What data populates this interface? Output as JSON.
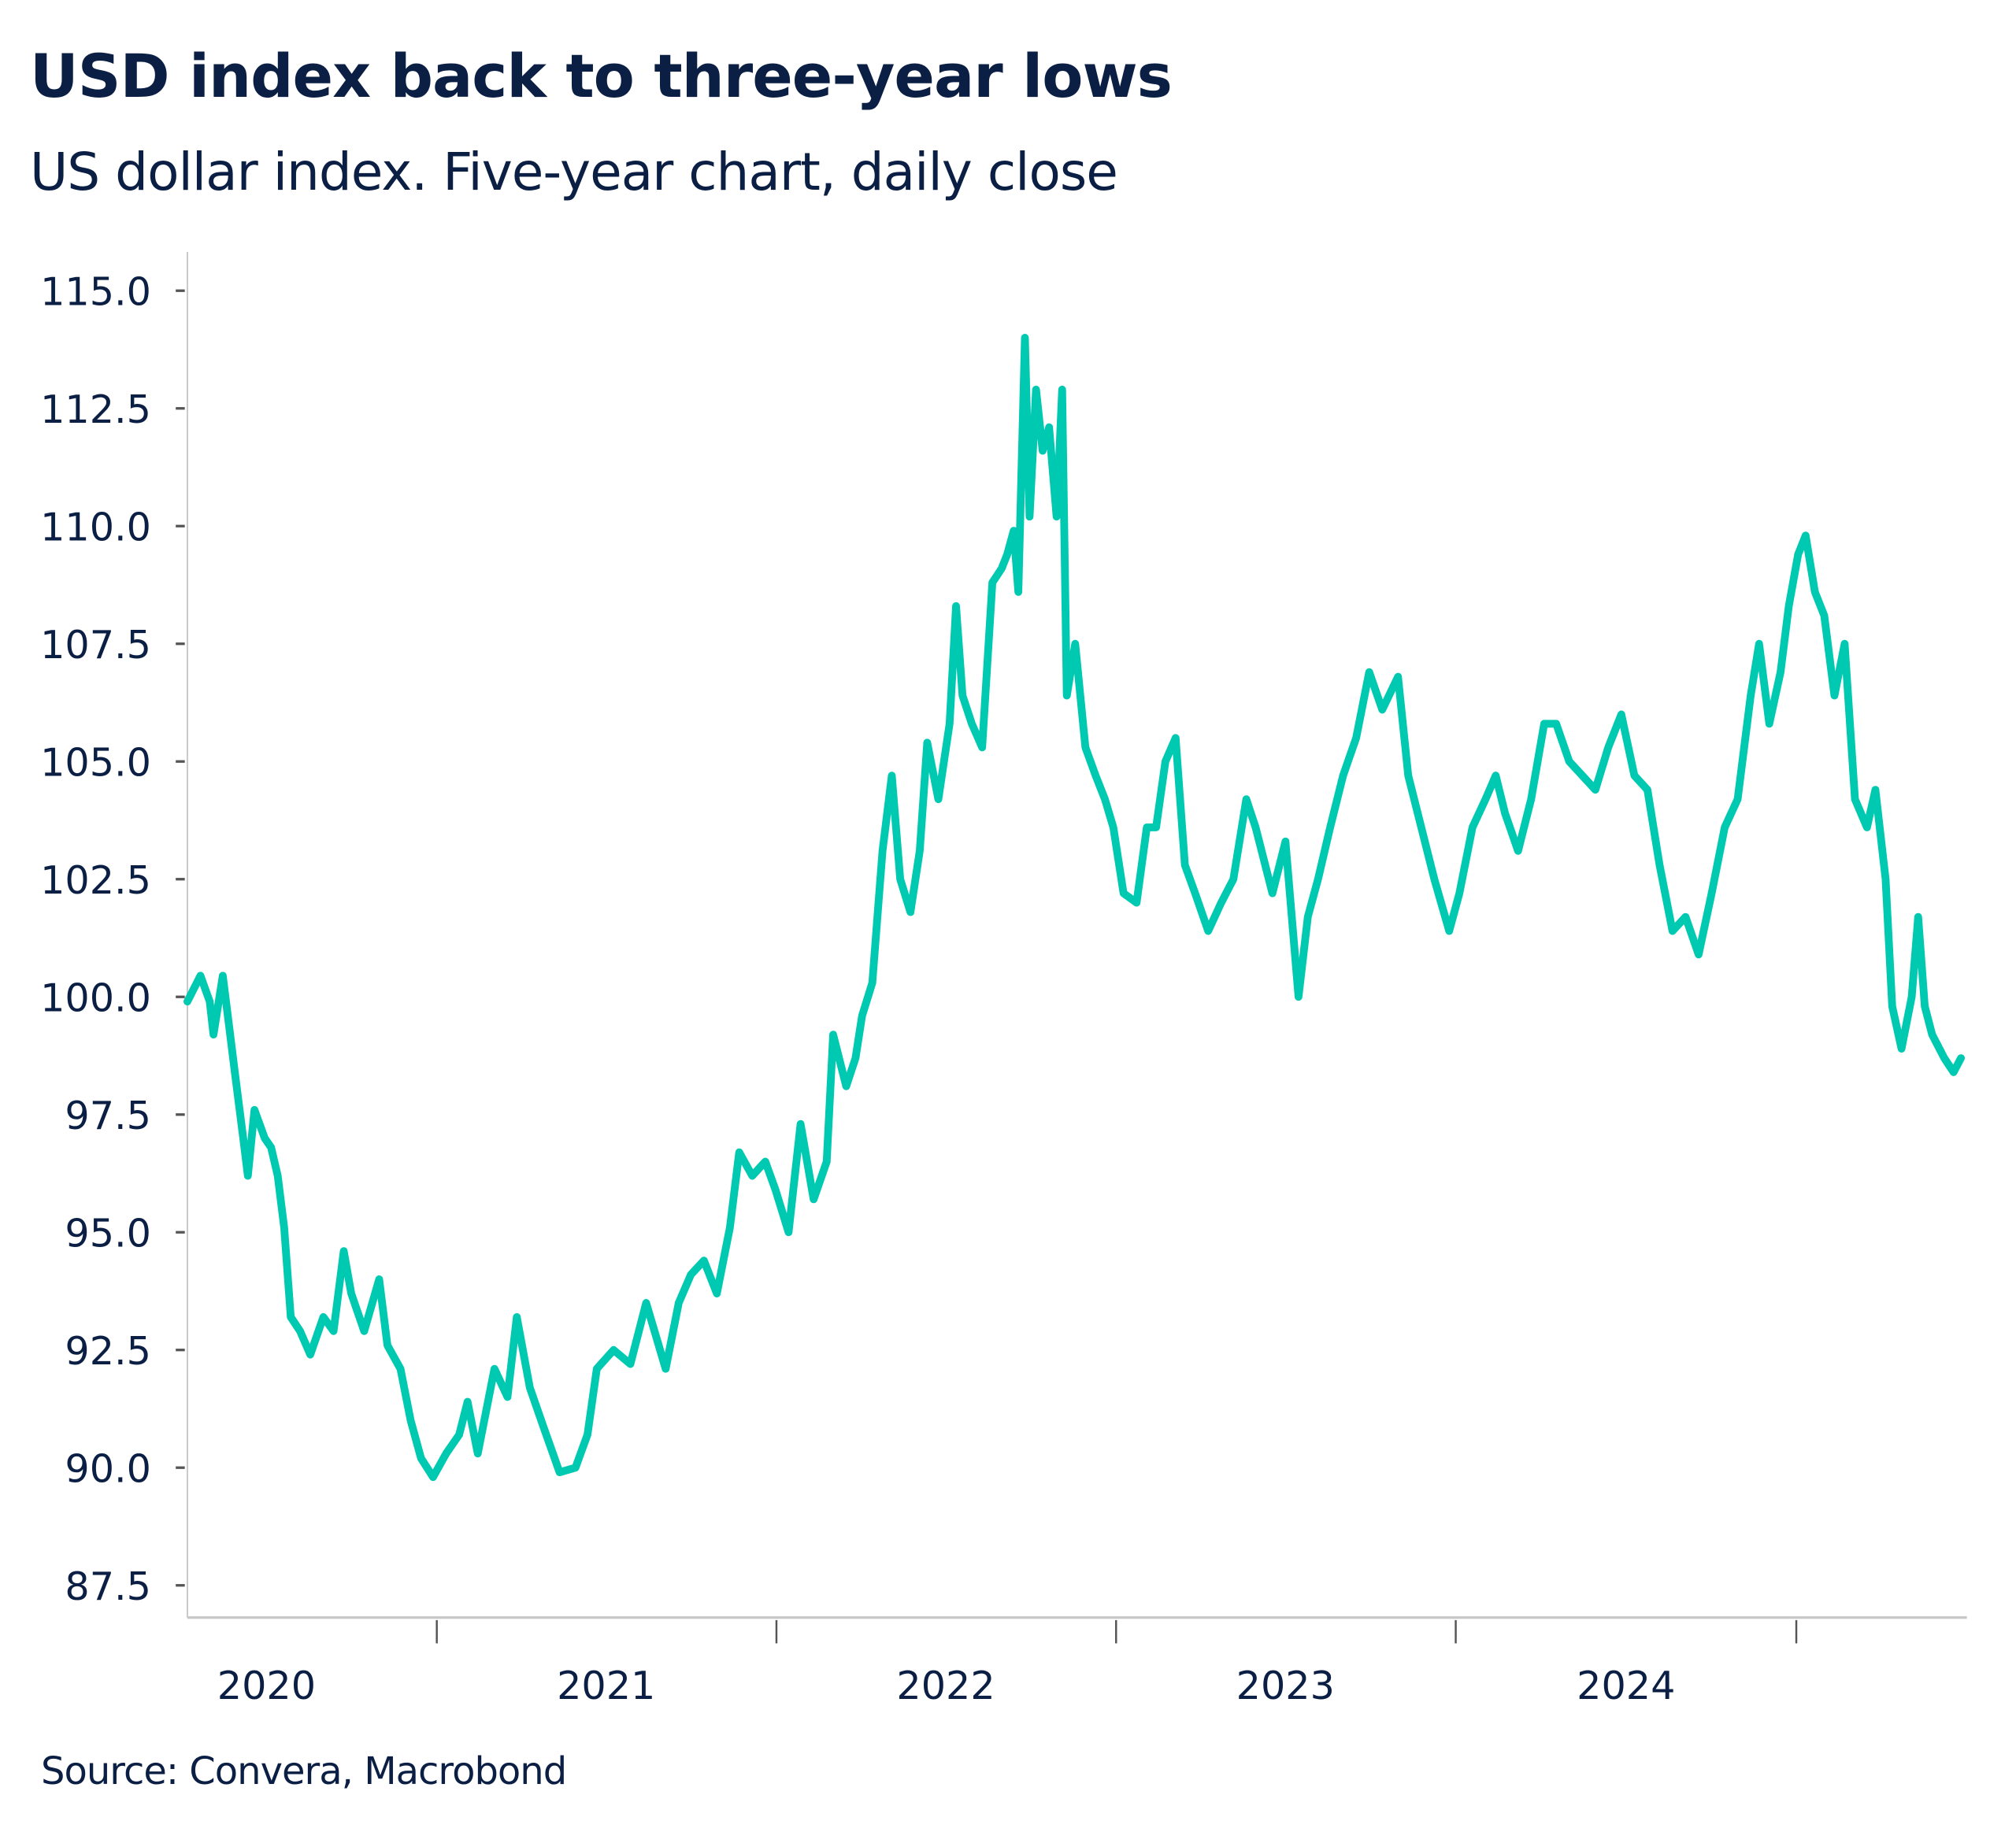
{
  "title": "USD index back to three-year lows",
  "subtitle": "US dollar index. Five-year chart, daily close",
  "source": "Source: Convera, Macrobond",
  "colors": {
    "line": "#00c9b1",
    "text": "#0b1f44",
    "axis": "#c8c8c8",
    "tick": "#555555"
  },
  "chart_data": {
    "type": "line",
    "title": "USD index back to three-year lows",
    "subtitle": "US dollar index. Five-year chart, daily close",
    "xlabel": "",
    "ylabel": "",
    "ylim": [
      87.5,
      115.5
    ],
    "xlim": [
      "2020-04-01",
      "2025-07-01"
    ],
    "yticks": [
      "87.5",
      "90.0",
      "92.5",
      "95.0",
      "97.5",
      "100.0",
      "102.5",
      "105.0",
      "107.5",
      "110.0",
      "112.5",
      "115.0"
    ],
    "xticks": [
      "2020",
      "2021",
      "2022",
      "2023",
      "2024"
    ],
    "grid": false,
    "legend": "none",
    "series": [
      {
        "points": [
          [
            "2020-04-08",
            99.9
          ],
          [
            "2020-04-22",
            100.45
          ],
          [
            "2020-05-02",
            99.9
          ],
          [
            "2020-05-06",
            99.2
          ],
          [
            "2020-05-16",
            100.45
          ],
          [
            "2020-05-24",
            99.2
          ],
          [
            "2020-05-29",
            98.4
          ],
          [
            "2020-06-07",
            97.0
          ],
          [
            "2020-06-12",
            96.2
          ],
          [
            "2020-06-19",
            97.6
          ],
          [
            "2020-06-30",
            97.0
          ],
          [
            "2020-07-07",
            96.8
          ],
          [
            "2020-07-14",
            96.2
          ],
          [
            "2020-07-21",
            95.1
          ],
          [
            "2020-07-28",
            93.2
          ],
          [
            "2020-08-07",
            92.9
          ],
          [
            "2020-08-18",
            92.4
          ],
          [
            "2020-09-01",
            93.2
          ],
          [
            "2020-09-12",
            92.9
          ],
          [
            "2020-09-23",
            94.6
          ],
          [
            "2020-10-01",
            93.7
          ],
          [
            "2020-10-15",
            92.9
          ],
          [
            "2020-10-31",
            94.0
          ],
          [
            "2020-11-09",
            92.6
          ],
          [
            "2020-11-23",
            92.1
          ],
          [
            "2020-12-04",
            91.0
          ],
          [
            "2020-12-15",
            90.2
          ],
          [
            "2020-12-28",
            89.8
          ],
          [
            "2021-01-11",
            90.3
          ],
          [
            "2021-01-25",
            90.7
          ],
          [
            "2021-02-03",
            91.4
          ],
          [
            "2021-02-14",
            90.3
          ],
          [
            "2021-03-04",
            92.1
          ],
          [
            "2021-03-18",
            91.5
          ],
          [
            "2021-03-28",
            93.2
          ],
          [
            "2021-04-11",
            91.7
          ],
          [
            "2021-04-25",
            90.9
          ],
          [
            "2021-05-13",
            89.9
          ],
          [
            "2021-05-30",
            90.0
          ],
          [
            "2021-06-12",
            90.7
          ],
          [
            "2021-06-22",
            92.1
          ],
          [
            "2021-07-10",
            92.5
          ],
          [
            "2021-07-28",
            92.2
          ],
          [
            "2021-08-14",
            93.5
          ],
          [
            "2021-09-04",
            92.1
          ],
          [
            "2021-09-18",
            93.5
          ],
          [
            "2021-10-01",
            94.1
          ],
          [
            "2021-10-15",
            94.4
          ],
          [
            "2021-10-29",
            93.7
          ],
          [
            "2021-11-12",
            95.1
          ],
          [
            "2021-11-22",
            96.7
          ],
          [
            "2021-12-06",
            96.2
          ],
          [
            "2021-12-20",
            96.5
          ],
          [
            "2021-12-31",
            95.9
          ],
          [
            "2022-01-14",
            95.0
          ],
          [
            "2022-01-27",
            97.3
          ],
          [
            "2022-02-10",
            95.7
          ],
          [
            "2022-02-24",
            96.5
          ],
          [
            "2022-03-03",
            99.2
          ],
          [
            "2022-03-17",
            98.1
          ],
          [
            "2022-03-27",
            98.7
          ],
          [
            "2022-04-03",
            99.6
          ],
          [
            "2022-04-14",
            100.3
          ],
          [
            "2022-04-25",
            103.1
          ],
          [
            "2022-05-05",
            104.7
          ],
          [
            "2022-05-14",
            102.5
          ],
          [
            "2022-05-25",
            101.8
          ],
          [
            "2022-06-04",
            103.1
          ],
          [
            "2022-06-12",
            105.4
          ],
          [
            "2022-06-24",
            104.2
          ],
          [
            "2022-07-06",
            105.8
          ],
          [
            "2022-07-13",
            108.3
          ],
          [
            "2022-07-20",
            106.4
          ],
          [
            "2022-07-30",
            105.8
          ],
          [
            "2022-08-10",
            105.3
          ],
          [
            "2022-08-21",
            108.8
          ],
          [
            "2022-08-31",
            109.1
          ],
          [
            "2022-09-06",
            109.4
          ],
          [
            "2022-09-13",
            109.9
          ],
          [
            "2022-09-18",
            108.6
          ],
          [
            "2022-09-25",
            114.0
          ],
          [
            "2022-09-30",
            110.2
          ],
          [
            "2022-10-07",
            112.9
          ],
          [
            "2022-10-14",
            111.6
          ],
          [
            "2022-10-21",
            112.1
          ],
          [
            "2022-10-29",
            110.2
          ],
          [
            "2022-11-04",
            112.9
          ],
          [
            "2022-11-09",
            106.4
          ],
          [
            "2022-11-18",
            107.5
          ],
          [
            "2022-11-29",
            105.3
          ],
          [
            "2022-12-10",
            104.7
          ],
          [
            "2022-12-20",
            104.2
          ],
          [
            "2022-12-29",
            103.6
          ],
          [
            "2023-01-09",
            102.2
          ],
          [
            "2023-01-23",
            102.0
          ],
          [
            "2023-02-03",
            103.6
          ],
          [
            "2023-02-13",
            103.6
          ],
          [
            "2023-02-23",
            105.0
          ],
          [
            "2023-03-06",
            105.5
          ],
          [
            "2023-03-16",
            102.8
          ],
          [
            "2023-03-27",
            102.2
          ],
          [
            "2023-04-10",
            101.4
          ],
          [
            "2023-04-24",
            102.0
          ],
          [
            "2023-05-07",
            102.5
          ],
          [
            "2023-05-21",
            104.2
          ],
          [
            "2023-05-31",
            103.6
          ],
          [
            "2023-06-18",
            102.2
          ],
          [
            "2023-07-02",
            103.3
          ],
          [
            "2023-07-16",
            100.0
          ],
          [
            "2023-07-26",
            101.7
          ],
          [
            "2023-08-06",
            102.5
          ],
          [
            "2023-08-19",
            103.6
          ],
          [
            "2023-09-02",
            104.7
          ],
          [
            "2023-09-16",
            105.5
          ],
          [
            "2023-09-30",
            106.9
          ],
          [
            "2023-10-14",
            106.1
          ],
          [
            "2023-10-31",
            106.8
          ],
          [
            "2023-11-11",
            104.7
          ],
          [
            "2023-11-25",
            103.6
          ],
          [
            "2023-12-09",
            102.5
          ],
          [
            "2023-12-25",
            101.4
          ],
          [
            "2024-01-05",
            102.2
          ],
          [
            "2024-01-19",
            103.6
          ],
          [
            "2024-02-02",
            104.2
          ],
          [
            "2024-02-13",
            104.7
          ],
          [
            "2024-02-23",
            103.9
          ],
          [
            "2024-03-08",
            103.1
          ],
          [
            "2024-03-22",
            104.2
          ],
          [
            "2024-04-05",
            105.8
          ],
          [
            "2024-04-18",
            105.8
          ],
          [
            "2024-05-02",
            105.0
          ],
          [
            "2024-05-16",
            104.7
          ],
          [
            "2024-05-30",
            104.4
          ],
          [
            "2024-06-13",
            105.3
          ],
          [
            "2024-06-27",
            106.0
          ],
          [
            "2024-07-11",
            104.7
          ],
          [
            "2024-07-25",
            104.4
          ],
          [
            "2024-08-07",
            102.8
          ],
          [
            "2024-08-21",
            101.4
          ],
          [
            "2024-09-04",
            101.7
          ],
          [
            "2024-09-18",
            100.9
          ],
          [
            "2024-10-02",
            102.2
          ],
          [
            "2024-10-16",
            103.6
          ],
          [
            "2024-10-30",
            104.2
          ],
          [
            "2024-11-13",
            106.4
          ],
          [
            "2024-11-22",
            107.5
          ],
          [
            "2024-12-03",
            105.8
          ],
          [
            "2024-12-15",
            106.9
          ],
          [
            "2024-12-24",
            108.3
          ],
          [
            "2025-01-03",
            109.4
          ],
          [
            "2025-01-11",
            109.8
          ],
          [
            "2025-01-21",
            108.6
          ],
          [
            "2025-01-31",
            108.1
          ],
          [
            "2025-02-11",
            106.4
          ],
          [
            "2025-02-22",
            107.5
          ],
          [
            "2025-03-05",
            104.2
          ],
          [
            "2025-03-18",
            103.6
          ],
          [
            "2025-03-27",
            104.4
          ],
          [
            "2025-04-07",
            102.5
          ],
          [
            "2025-04-14",
            99.8
          ],
          [
            "2025-04-24",
            98.9
          ],
          [
            "2025-05-05",
            100.0
          ],
          [
            "2025-05-12",
            101.7
          ],
          [
            "2025-05-19",
            99.8
          ],
          [
            "2025-05-27",
            99.2
          ],
          [
            "2025-06-09",
            98.7
          ],
          [
            "2025-06-19",
            98.4
          ],
          [
            "2025-06-27",
            98.7
          ]
        ]
      }
    ]
  }
}
